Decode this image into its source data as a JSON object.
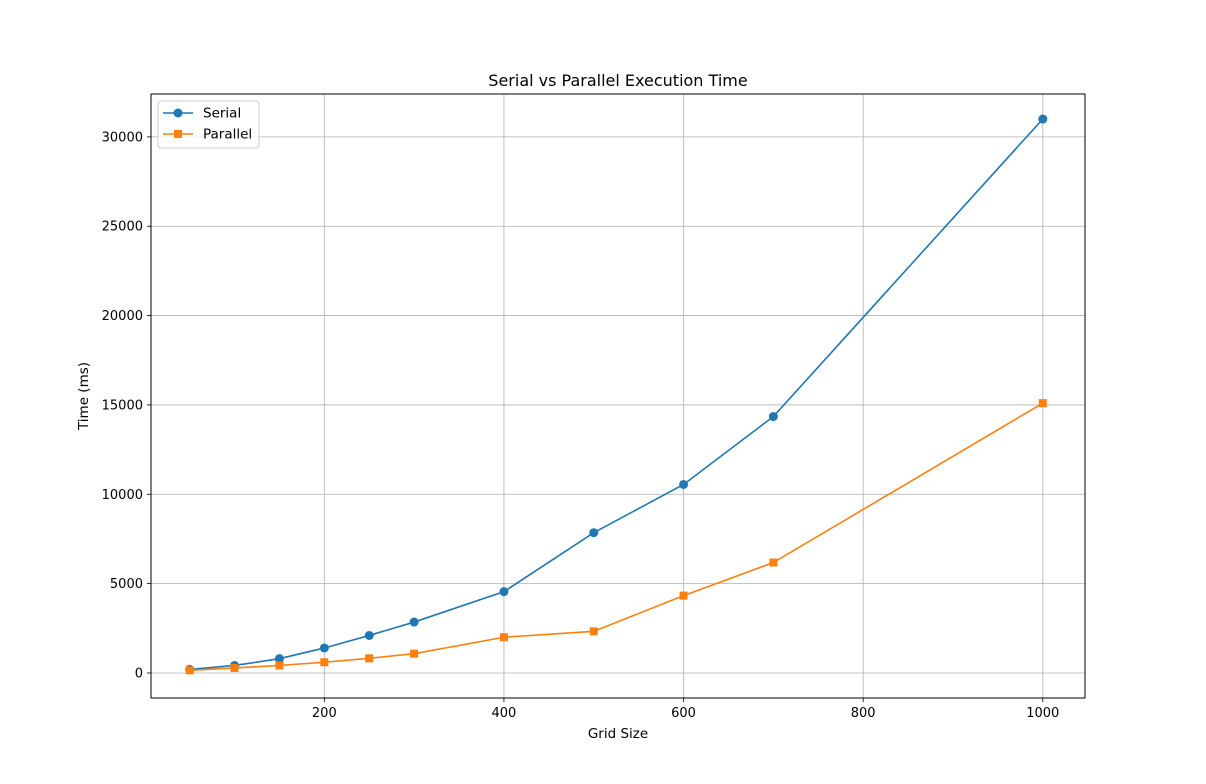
{
  "chart_data": {
    "type": "line",
    "title": "Serial vs Parallel Execution Time",
    "xlabel": "Grid Size",
    "ylabel": "Time (ms)",
    "xlim": [
      7,
      1047
    ],
    "ylim": [
      -1400,
      32400
    ],
    "xticks": [
      200,
      400,
      600,
      800,
      1000
    ],
    "yticks": [
      0,
      5000,
      10000,
      15000,
      20000,
      25000,
      30000
    ],
    "grid": true,
    "legend_position": "upper-left",
    "x": [
      50,
      100,
      150,
      200,
      250,
      300,
      400,
      500,
      600,
      700,
      1000
    ],
    "series": [
      {
        "name": "Serial",
        "color": "#1f77b4",
        "marker": "circle",
        "values": [
          200,
          420,
          800,
          1400,
          2100,
          2850,
          4550,
          7850,
          10550,
          14350,
          31000
        ]
      },
      {
        "name": "Parallel",
        "color": "#ff7f0e",
        "marker": "square",
        "values": [
          150,
          280,
          420,
          600,
          820,
          1080,
          2000,
          2330,
          4330,
          6180,
          15100
        ]
      }
    ]
  }
}
